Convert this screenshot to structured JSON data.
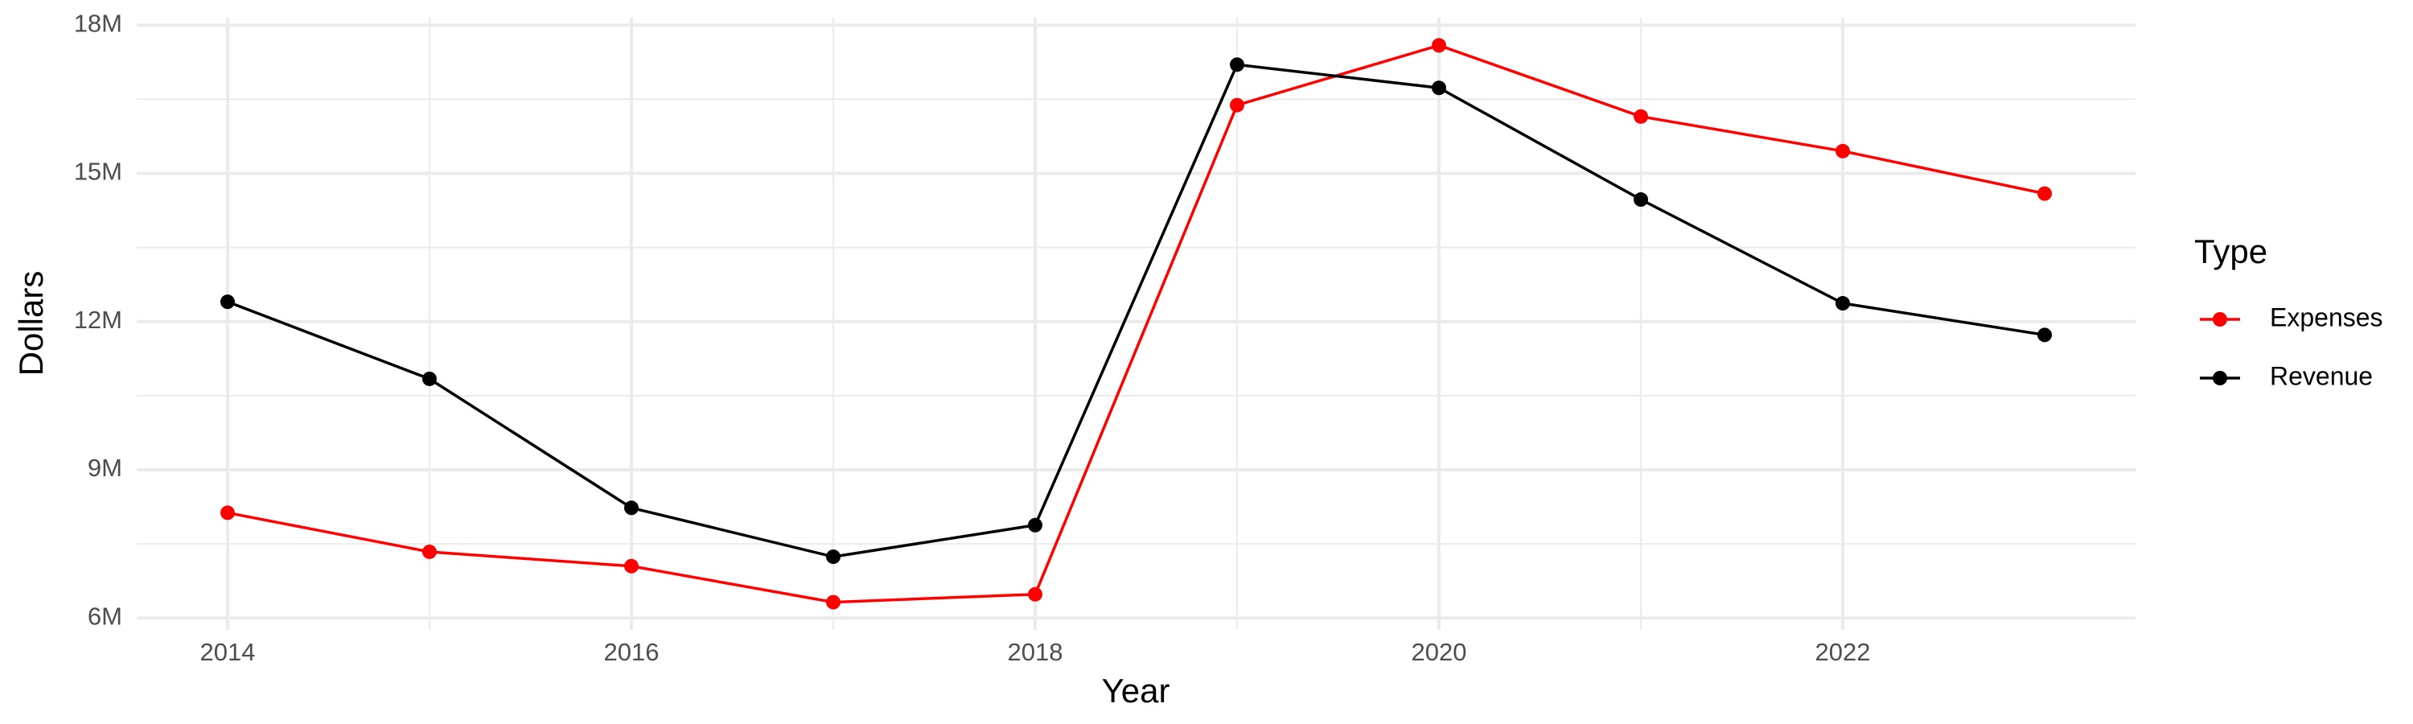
{
  "chart_data": {
    "type": "line",
    "x_label": "Year",
    "y_label": "Dollars",
    "legend_title": "Type",
    "x": [
      2014,
      2015,
      2016,
      2017,
      2018,
      2019,
      2020,
      2021,
      2022,
      2023
    ],
    "series": [
      {
        "name": "Expenses",
        "color": "#ff0000",
        "values": [
          8130000,
          7340000,
          7050000,
          6320000,
          6480000,
          16380000,
          17590000,
          16150000,
          15450000,
          14590000
        ]
      },
      {
        "name": "Revenue",
        "color": "#000000",
        "values": [
          12400000,
          10840000,
          8230000,
          7240000,
          7880000,
          17200000,
          16730000,
          14470000,
          12370000,
          11730000
        ]
      }
    ],
    "xlim": [
      2013.55,
      2023.45
    ],
    "xticks": [
      2014,
      2016,
      2018,
      2020,
      2022
    ],
    "ylim": [
      5760000,
      18150000
    ],
    "yticks": [
      {
        "value": 6000000,
        "label": "6M"
      },
      {
        "value": 9000000,
        "label": "9M"
      },
      {
        "value": 12000000,
        "label": "12M"
      },
      {
        "value": 15000000,
        "label": "15M"
      },
      {
        "value": 18000000,
        "label": "18M"
      }
    ],
    "grid": true,
    "legend": "right"
  }
}
